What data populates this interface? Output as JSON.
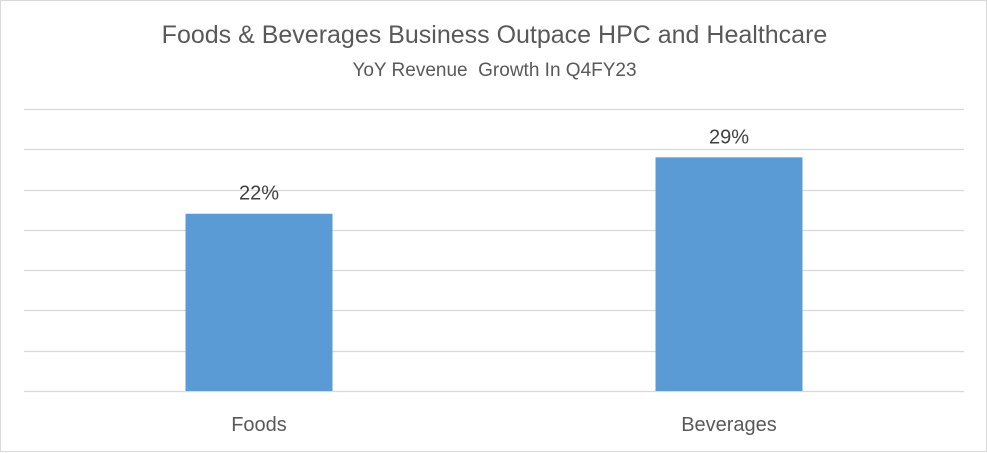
{
  "chart_data": {
    "type": "bar",
    "title": "Foods & Beverages Business Outpace HPC and Healthcare",
    "subtitle": "YoY Revenue  Growth In Q4FY23",
    "categories": [
      "Foods",
      "Beverages"
    ],
    "values": [
      22,
      29
    ],
    "value_labels": [
      "22%",
      "29%"
    ],
    "ylim": [
      0,
      35
    ],
    "gridlines": [
      0,
      5,
      10,
      15,
      20,
      25,
      30,
      35
    ],
    "grid": true,
    "legend": "none",
    "xlabel": "",
    "ylabel": "",
    "colors": {
      "bar": "#5b9bd5",
      "grid": "#d9d9d9",
      "text": "#595959"
    }
  }
}
